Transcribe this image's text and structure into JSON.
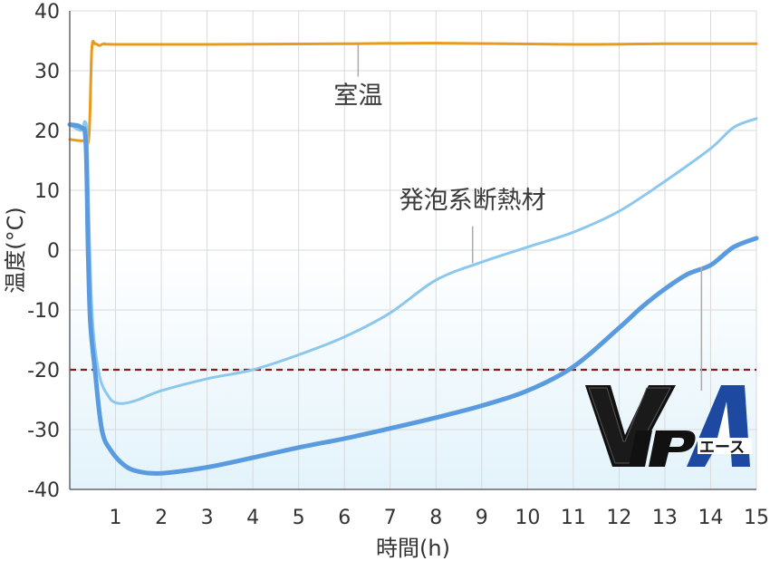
{
  "chart_data": {
    "type": "line",
    "xlabel": "時間(h)",
    "ylabel": "温度(°C)",
    "xlim": [
      0,
      15
    ],
    "ylim": [
      -40,
      40
    ],
    "x_ticks": [
      "1",
      "2",
      "3",
      "4",
      "5",
      "6",
      "7",
      "8",
      "9",
      "10",
      "11",
      "12",
      "13",
      "14",
      "15"
    ],
    "y_ticks": [
      "40",
      "30",
      "20",
      "10",
      "0",
      "-10",
      "-20",
      "-30",
      "-40"
    ],
    "grid": true,
    "reference_line": {
      "y": -20,
      "style": "dashed",
      "color": "#8b1a1a"
    },
    "series": [
      {
        "name": "室温",
        "color": "#e89a1a",
        "points": [
          [
            0,
            18.5
          ],
          [
            0.3,
            18.3
          ],
          [
            0.42,
            19
          ],
          [
            0.48,
            33.5
          ],
          [
            0.55,
            34.5
          ],
          [
            0.65,
            34.2
          ],
          [
            0.75,
            34.5
          ],
          [
            1,
            34.4
          ],
          [
            3,
            34.4
          ],
          [
            6,
            34.5
          ],
          [
            8,
            34.6
          ],
          [
            11,
            34.4
          ],
          [
            13,
            34.5
          ],
          [
            15,
            34.5
          ]
        ]
      },
      {
        "name": "発泡系断熱材",
        "color": "#8cc8ee",
        "points": [
          [
            0,
            21
          ],
          [
            0.25,
            20
          ],
          [
            0.33,
            21.5
          ],
          [
            0.38,
            19
          ],
          [
            0.42,
            5
          ],
          [
            0.5,
            -12
          ],
          [
            0.65,
            -21
          ],
          [
            0.85,
            -24.5
          ],
          [
            1,
            -25.5
          ],
          [
            1.2,
            -25.6
          ],
          [
            1.5,
            -25
          ],
          [
            2,
            -23.5
          ],
          [
            3,
            -21.5
          ],
          [
            4,
            -20
          ],
          [
            5,
            -17.5
          ],
          [
            6,
            -14.5
          ],
          [
            7,
            -10.5
          ],
          [
            8,
            -5
          ],
          [
            9,
            -2
          ],
          [
            10,
            0.5
          ],
          [
            11,
            3
          ],
          [
            12,
            6.5
          ],
          [
            13,
            11.5
          ],
          [
            14,
            17
          ],
          [
            14.5,
            20.5
          ],
          [
            15,
            22
          ]
        ]
      },
      {
        "name": "VIPエース",
        "color": "#5a9be0",
        "points": [
          [
            0,
            21
          ],
          [
            0.25,
            20.5
          ],
          [
            0.35,
            18
          ],
          [
            0.4,
            0
          ],
          [
            0.45,
            -12
          ],
          [
            0.55,
            -20
          ],
          [
            0.7,
            -30
          ],
          [
            0.9,
            -33.5
          ],
          [
            1.2,
            -36
          ],
          [
            1.5,
            -37
          ],
          [
            2,
            -37.3
          ],
          [
            3,
            -36.3
          ],
          [
            4,
            -34.7
          ],
          [
            5,
            -33
          ],
          [
            6,
            -31.5
          ],
          [
            7,
            -29.8
          ],
          [
            8,
            -28
          ],
          [
            9,
            -26
          ],
          [
            10,
            -23.5
          ],
          [
            11,
            -19.5
          ],
          [
            12,
            -13
          ],
          [
            12.5,
            -9.5
          ],
          [
            13,
            -6.5
          ],
          [
            13.5,
            -4
          ],
          [
            14,
            -2.5
          ],
          [
            14.5,
            0.5
          ],
          [
            15,
            2
          ]
        ]
      }
    ],
    "annotations": [
      {
        "text": "室温",
        "x": 6.3,
        "y": 24.5,
        "line_from": [
          6.3,
          34.4
        ],
        "line_to": [
          6.3,
          29
        ]
      },
      {
        "text": "発泡系断熱材",
        "x": 8.8,
        "y": 7,
        "line_from": [
          8.8,
          -2.2
        ],
        "line_to": [
          8.8,
          4
        ]
      },
      {
        "text": "VIPエース",
        "logo": true,
        "line_from": [
          13.8,
          -2.8
        ],
        "line_to": [
          13.8,
          -23.5
        ]
      }
    ],
    "background_gradient": {
      "from_y": 0,
      "top_color": "#ffffff",
      "bottom_color": "#e3f3fb"
    }
  }
}
